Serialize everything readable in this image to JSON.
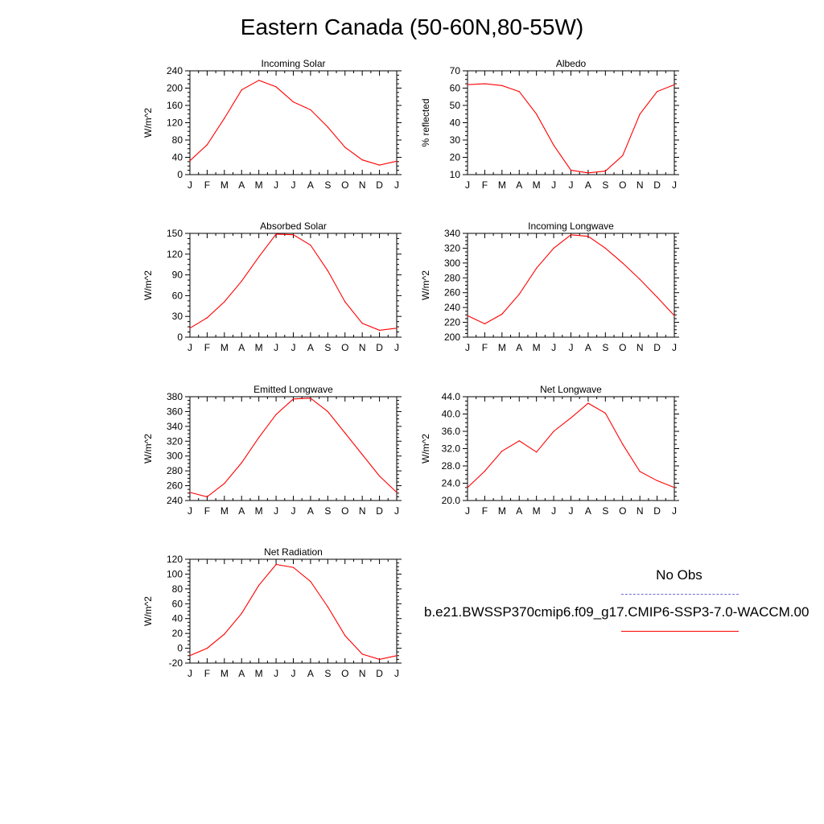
{
  "title": "Eastern Canada (50-60N,80-55W)",
  "colors": {
    "model": "#ff0000",
    "obs": "#6b6bdf",
    "axis": "#000000"
  },
  "legend": {
    "obs_label": "No Obs",
    "model_label": "b.e21.BWSSP370cmip6.f09_g17.CMIP6-SSP3-7.0-WACCM.00"
  },
  "chart_data": [
    {
      "type": "line",
      "title": "Incoming Solar",
      "ylabel": "W/m^2",
      "categories": [
        "J",
        "F",
        "M",
        "A",
        "M",
        "J",
        "J",
        "A",
        "S",
        "O",
        "N",
        "D",
        "J"
      ],
      "ylim": [
        0,
        240
      ],
      "yticks": [
        0,
        40,
        80,
        120,
        160,
        200,
        240
      ],
      "ytick_labels": [
        "0",
        "40",
        "80",
        "120",
        "160",
        "200",
        "240"
      ],
      "series": [
        {
          "values": [
            32,
            69,
            130,
            196,
            218,
            203,
            168,
            150,
            110,
            63,
            34,
            22,
            31
          ]
        }
      ]
    },
    {
      "type": "line",
      "title": "Albedo",
      "ylabel": "% reflected",
      "categories": [
        "J",
        "F",
        "M",
        "A",
        "M",
        "J",
        "J",
        "A",
        "S",
        "O",
        "N",
        "D",
        "J"
      ],
      "ylim": [
        10,
        70
      ],
      "yticks": [
        10,
        20,
        30,
        40,
        50,
        60,
        70
      ],
      "ytick_labels": [
        "10",
        "20",
        "30",
        "40",
        "50",
        "60",
        "70"
      ],
      "series": [
        {
          "values": [
            62,
            62.5,
            61.5,
            58,
            45,
            27,
            12.5,
            11,
            12,
            21,
            45,
            58,
            62
          ]
        }
      ]
    },
    {
      "type": "line",
      "title": "Absorbed Solar",
      "ylabel": "W/m^2",
      "categories": [
        "J",
        "F",
        "M",
        "A",
        "M",
        "J",
        "J",
        "A",
        "S",
        "O",
        "N",
        "D",
        "J"
      ],
      "ylim": [
        0,
        150
      ],
      "yticks": [
        0,
        30,
        60,
        90,
        120,
        150
      ],
      "ytick_labels": [
        "0",
        "30",
        "60",
        "90",
        "120",
        "150"
      ],
      "series": [
        {
          "values": [
            13,
            28,
            51,
            81,
            116,
            149,
            148,
            133,
            96,
            51,
            20,
            10,
            13
          ]
        }
      ]
    },
    {
      "type": "line",
      "title": "Incoming Longwave",
      "ylabel": "W/m^2",
      "categories": [
        "J",
        "F",
        "M",
        "A",
        "M",
        "J",
        "J",
        "A",
        "S",
        "O",
        "N",
        "D",
        "J"
      ],
      "ylim": [
        200,
        340
      ],
      "yticks": [
        200,
        220,
        240,
        260,
        280,
        300,
        320,
        340
      ],
      "ytick_labels": [
        "200",
        "220",
        "240",
        "260",
        "280",
        "300",
        "320",
        "340"
      ],
      "series": [
        {
          "values": [
            229,
            218,
            231,
            258,
            293,
            320,
            338,
            336,
            320,
            300,
            278,
            254,
            229
          ]
        }
      ]
    },
    {
      "type": "line",
      "title": "Emitted Longwave",
      "ylabel": "W/m^2",
      "categories": [
        "J",
        "F",
        "M",
        "A",
        "M",
        "J",
        "J",
        "A",
        "S",
        "O",
        "N",
        "D",
        "J"
      ],
      "ylim": [
        240,
        380
      ],
      "yticks": [
        240,
        260,
        280,
        300,
        320,
        340,
        360,
        380
      ],
      "ytick_labels": [
        "240",
        "260",
        "280",
        "300",
        "320",
        "340",
        "360",
        "380"
      ],
      "series": [
        {
          "values": [
            251,
            245,
            263,
            291,
            325,
            356,
            377,
            378,
            360,
            331,
            302,
            273,
            251
          ]
        }
      ]
    },
    {
      "type": "line",
      "title": "Net Longwave",
      "ylabel": "W/m^2",
      "categories": [
        "J",
        "F",
        "M",
        "A",
        "M",
        "J",
        "J",
        "A",
        "S",
        "O",
        "N",
        "D",
        "J"
      ],
      "ylim": [
        20,
        44
      ],
      "yticks": [
        20,
        24,
        28,
        32,
        36,
        40,
        44
      ],
      "ytick_labels": [
        "20.0",
        "24.0",
        "28.0",
        "32.0",
        "36.0",
        "40.0",
        "44.0"
      ],
      "series": [
        {
          "values": [
            23,
            26.8,
            31.4,
            33.8,
            31.2,
            36,
            39.1,
            42.5,
            40.2,
            33,
            26.7,
            24.6,
            23
          ]
        }
      ]
    },
    {
      "type": "line",
      "title": "Net Radiation",
      "ylabel": "W/m^2",
      "categories": [
        "J",
        "F",
        "M",
        "A",
        "M",
        "J",
        "J",
        "A",
        "S",
        "O",
        "N",
        "D",
        "J"
      ],
      "ylim": [
        -20,
        120
      ],
      "yticks": [
        -20,
        0,
        20,
        40,
        60,
        80,
        100,
        120
      ],
      "ytick_labels": [
        "-20",
        "0",
        "20",
        "40",
        "60",
        "80",
        "100",
        "120"
      ],
      "series": [
        {
          "values": [
            -10,
            0,
            19,
            47,
            85,
            113,
            109,
            90,
            56,
            17,
            -8,
            -15,
            -10
          ]
        }
      ]
    }
  ]
}
